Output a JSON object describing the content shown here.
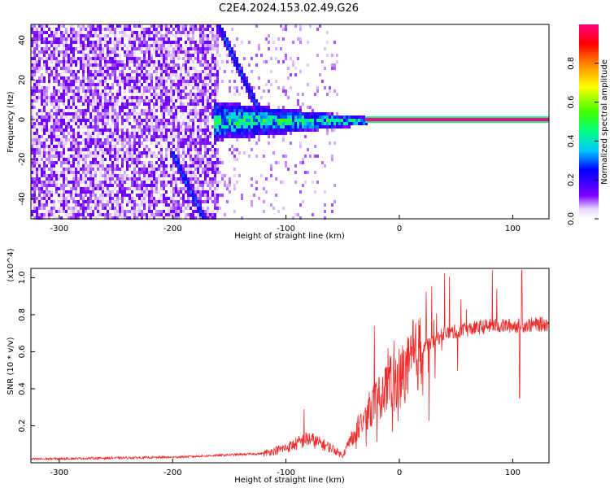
{
  "title": "C2E4.2024.153.02.49.G26",
  "chart_data": [
    {
      "type": "heatmap",
      "xlabel": "Height of straight line (km)",
      "ylabel": "Frequency (Hz)",
      "xlim": [
        -325,
        132
      ],
      "ylim": [
        -50,
        48
      ],
      "xticks": [
        -300,
        -200,
        -100,
        0,
        100
      ],
      "yticks": [
        -40,
        -20,
        0,
        20,
        40
      ],
      "colorbar": {
        "label": "Normalized spectral amplitude",
        "range": [
          0,
          1
        ],
        "ticks": [
          "0.0",
          "0.2",
          "0.4",
          "0.6",
          "0.8"
        ],
        "tick_values": [
          0,
          0.2,
          0.4,
          0.6,
          0.8
        ]
      },
      "features": [
        {
          "kind": "noise_field",
          "x": [
            -325,
            -160
          ],
          "y": [
            -50,
            48
          ],
          "amplitude": 0.12
        },
        {
          "kind": "dispersing_band",
          "x": [
            -165,
            -30
          ],
          "center_hz": 0,
          "half_width_hz_start": 10,
          "half_width_hz_end": 2,
          "amplitude": 0.35
        },
        {
          "kind": "carrier_line",
          "x": [
            -30,
            132
          ],
          "center_hz": 0,
          "amplitude": 1.0
        },
        {
          "kind": "diagonal_trace",
          "from": [
            -160,
            48
          ],
          "to": [
            -120,
            0
          ],
          "amplitude": 0.3
        },
        {
          "kind": "diagonal_trace",
          "from": [
            -200,
            -17
          ],
          "to": [
            -172,
            -50
          ],
          "amplitude": 0.3
        }
      ]
    },
    {
      "type": "line",
      "xlabel": "Height of straight line (km)",
      "ylabel": "SNR (10 * v/v)",
      "y_multiplier": "(x10^4)",
      "xlim": [
        -325,
        132
      ],
      "ylim": [
        0,
        1.05
      ],
      "xticks": [
        -300,
        -200,
        -100,
        0,
        100
      ],
      "yticks": [
        0.2,
        0.4,
        0.6,
        0.8,
        1.0
      ],
      "series": [
        {
          "color": "#ee2a2a",
          "envelope": [
            [
              -325,
              0.02
            ],
            [
              -200,
              0.03
            ],
            [
              -120,
              0.05
            ],
            [
              -100,
              0.08
            ],
            [
              -80,
              0.13
            ],
            [
              -60,
              0.08
            ],
            [
              -50,
              0.04
            ],
            [
              -40,
              0.16
            ],
            [
              -25,
              0.3
            ],
            [
              -10,
              0.42
            ],
            [
              0,
              0.47
            ],
            [
              10,
              0.52
            ],
            [
              20,
              0.62
            ],
            [
              40,
              0.7
            ],
            [
              60,
              0.72
            ],
            [
              80,
              0.74
            ],
            [
              100,
              0.74
            ],
            [
              132,
              0.75
            ]
          ],
          "spikes": [
            [
              -84,
              0.29
            ],
            [
              -22,
              0.74
            ],
            [
              -10,
              0.62
            ],
            [
              12,
              0.77
            ],
            [
              82,
              1.04
            ],
            [
              86,
              0.94
            ],
            [
              108,
              1.04
            ],
            [
              106,
              0.35
            ]
          ]
        }
      ]
    }
  ]
}
